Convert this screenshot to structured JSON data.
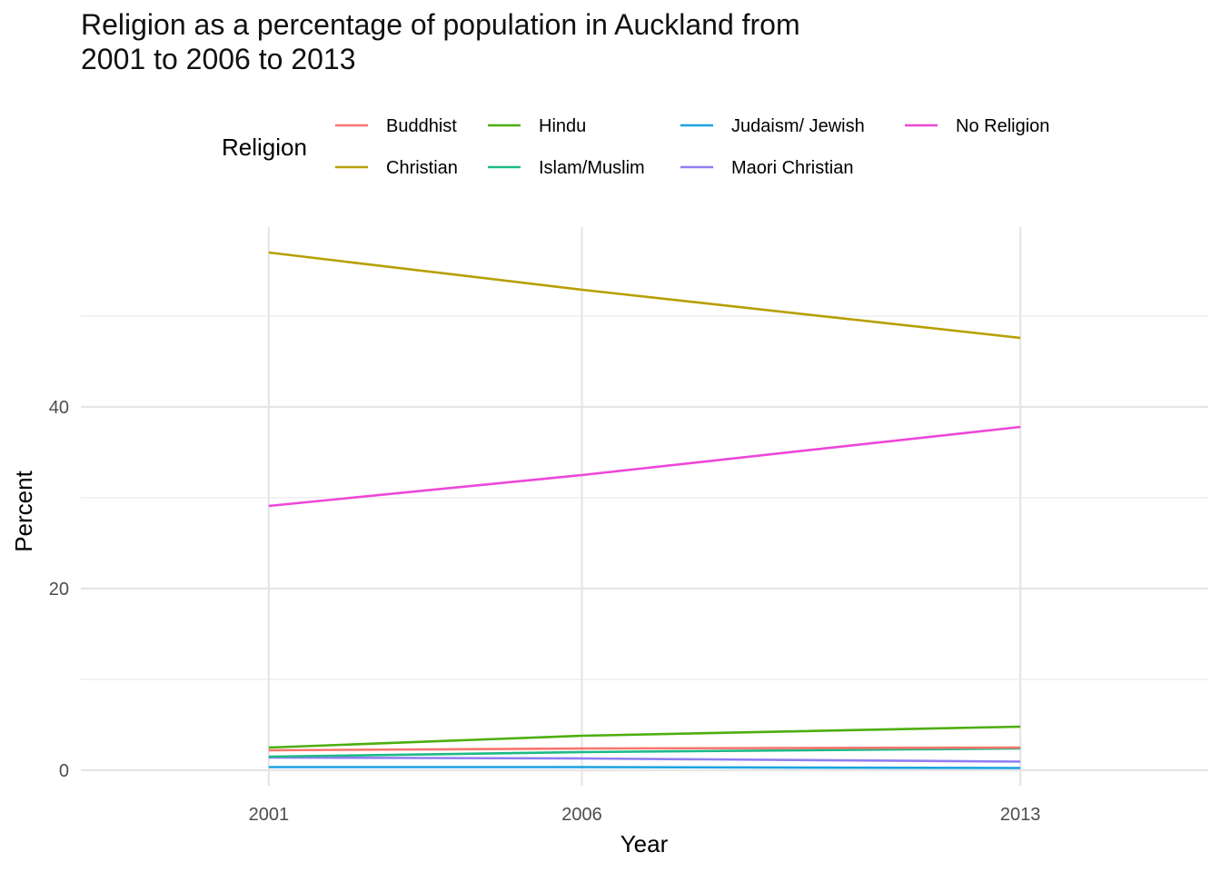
{
  "chart_data": {
    "type": "line",
    "title_lines": [
      "Religion as a percentage of population in Auckland from",
      "2001 to 2006 to 2013"
    ],
    "xlabel": "Year",
    "ylabel": "Percent",
    "x": [
      2001,
      2006,
      2013
    ],
    "x_tick_labels": [
      "2001",
      "2006",
      "2013"
    ],
    "y_ticks": [
      0,
      20,
      40
    ],
    "ylim": [
      -2.5,
      60
    ],
    "grid": true,
    "legend_title": "Religion",
    "legend_position": "top",
    "series": [
      {
        "name": "Buddhist",
        "color": "#F8766D",
        "values": [
          2.2,
          2.4,
          2.5
        ]
      },
      {
        "name": "Christian",
        "color": "#B79F00",
        "values": [
          57.0,
          52.9,
          47.6
        ]
      },
      {
        "name": "Hindu",
        "color": "#4DAE0E",
        "values": [
          2.5,
          3.8,
          4.8
        ]
      },
      {
        "name": "Islam/Muslim",
        "color": "#1DBA87",
        "values": [
          1.5,
          2.0,
          2.4
        ]
      },
      {
        "name": "Judaism/ Jewish",
        "color": "#1AA3E0",
        "values": [
          0.35,
          0.35,
          0.25
        ]
      },
      {
        "name": "Maori Christian",
        "color": "#8F7EF0",
        "values": [
          1.4,
          1.3,
          0.95
        ]
      },
      {
        "name": "No Religion",
        "color": "#EE47D8",
        "values": [
          29.1,
          32.5,
          37.8
        ]
      }
    ]
  }
}
